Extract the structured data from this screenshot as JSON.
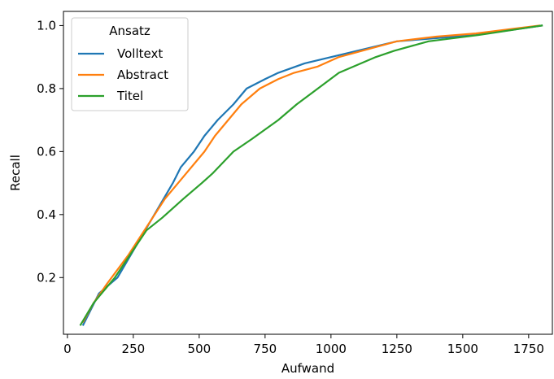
{
  "chart_data": {
    "type": "line",
    "xlabel": "Aufwand",
    "ylabel": "Recall",
    "xlim": [
      -15,
      1840
    ],
    "ylim": [
      0.02,
      1.045
    ],
    "xticks": [
      0,
      250,
      500,
      750,
      1000,
      1250,
      1500,
      1750
    ],
    "xtick_labels": [
      "0",
      "250",
      "500",
      "750",
      "1000",
      "1250",
      "1500",
      "1750"
    ],
    "yticks": [
      0.2,
      0.4,
      0.6,
      0.8,
      1.0
    ],
    "ytick_labels": [
      "0.2",
      "0.4",
      "0.6",
      "0.8",
      "1.0"
    ],
    "grid": false,
    "legend": {
      "title": "Ansatz",
      "placement": "top-left"
    },
    "series": [
      {
        "name": "Volltext",
        "color": "#1f77b4",
        "x": [
          60,
          120,
          190,
          260,
          330,
          400,
          430,
          480,
          520,
          570,
          630,
          680,
          750,
          800,
          900,
          1000,
          1100,
          1250,
          1400,
          1550,
          1800
        ],
        "y": [
          0.05,
          0.15,
          0.2,
          0.3,
          0.4,
          0.5,
          0.55,
          0.6,
          0.65,
          0.7,
          0.75,
          0.8,
          0.83,
          0.85,
          0.88,
          0.9,
          0.92,
          0.95,
          0.96,
          0.97,
          1.0
        ]
      },
      {
        "name": "Abstract",
        "color": "#ff7f0e",
        "x": [
          60,
          100,
          150,
          230,
          300,
          370,
          440,
          520,
          560,
          660,
          730,
          800,
          860,
          950,
          1030,
          1250,
          1400,
          1550,
          1790
        ],
        "y": [
          0.06,
          0.12,
          0.18,
          0.27,
          0.36,
          0.45,
          0.52,
          0.6,
          0.65,
          0.75,
          0.8,
          0.83,
          0.85,
          0.87,
          0.9,
          0.95,
          0.965,
          0.975,
          1.0
        ]
      },
      {
        "name": "Titel",
        "color": "#2ca02c",
        "x": [
          50,
          100,
          180,
          260,
          300,
          360,
          440,
          510,
          550,
          630,
          700,
          800,
          870,
          1030,
          1170,
          1240,
          1370,
          1560,
          1800
        ],
        "y": [
          0.05,
          0.12,
          0.2,
          0.3,
          0.35,
          0.39,
          0.45,
          0.5,
          0.53,
          0.6,
          0.64,
          0.7,
          0.75,
          0.85,
          0.9,
          0.92,
          0.95,
          0.97,
          1.0
        ]
      }
    ]
  }
}
